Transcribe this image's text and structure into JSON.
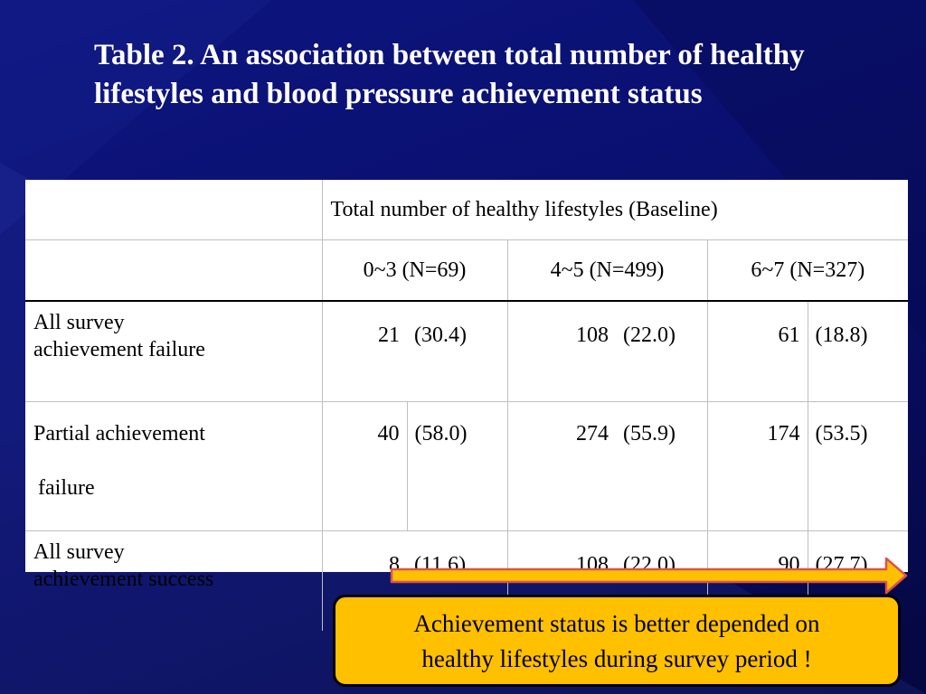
{
  "slide": {
    "title": "Table 2. An association between total number of healthy lifestyles and blood pressure achievement status",
    "colors": {
      "background": "#0a1070",
      "title_text": "#ffffff",
      "arrow_fill": "#ffc000",
      "arrow_stroke": "#d9534f",
      "callout_fill": "#ffc000"
    }
  },
  "table": {
    "group_header": "Total number of healthy lifestyles (Baseline)",
    "columns": [
      "0~3 (N=69)",
      "4~5 (N=499)",
      "6~7 (N=327)"
    ],
    "rows": [
      {
        "label_line1": "All survey",
        "label_line2": "achievement failure",
        "cells": [
          {
            "n": "21",
            "pct": "(30.4)"
          },
          {
            "n": "108",
            "pct": "(22.0)"
          },
          {
            "n": "61",
            "pct": "(18.8)"
          }
        ]
      },
      {
        "label_line1": "Partial achievement",
        "label_line2": "failure",
        "cells": [
          {
            "n": "40",
            "pct": "(58.0)"
          },
          {
            "n": "274",
            "pct": "(55.9)"
          },
          {
            "n": "174",
            "pct": "(53.5)"
          }
        ]
      },
      {
        "label_line1": "All survey",
        "label_line2": "achievement success",
        "cells": [
          {
            "n": "8",
            "pct": "(11.6)"
          },
          {
            "n": "108",
            "pct": "(22.0)"
          },
          {
            "n": "90",
            "pct": "(27.7)"
          }
        ]
      }
    ]
  },
  "callout": {
    "line1": "Achievement status is better depended on",
    "line2": "healthy lifestyles during survey period !"
  }
}
